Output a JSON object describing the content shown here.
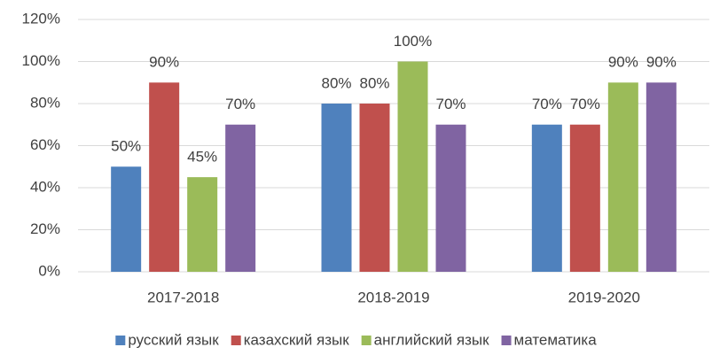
{
  "chart_data": {
    "type": "bar",
    "categories": [
      "2017-2018",
      "2018-2019",
      "2019-2020"
    ],
    "series": [
      {
        "name": "русский язык",
        "color": "#4f81bd",
        "values": [
          50,
          80,
          70
        ],
        "value_labels": [
          "50%",
          "80%",
          "70%"
        ]
      },
      {
        "name": "казахский язык",
        "color": "#c0504d",
        "values": [
          90,
          80,
          70
        ],
        "value_labels": [
          "90%",
          "80%",
          "70%"
        ]
      },
      {
        "name": "английский язык",
        "color": "#9bbb59",
        "values": [
          45,
          100,
          90
        ],
        "value_labels": [
          "45%",
          "100%",
          "90%"
        ]
      },
      {
        "name": "математика",
        "color": "#8064a2",
        "values": [
          70,
          70,
          90
        ],
        "value_labels": [
          "70%",
          "70%",
          "90%"
        ]
      }
    ],
    "ylim": [
      0,
      120
    ],
    "yticks": [
      {
        "value": 0,
        "label": "0%"
      },
      {
        "value": 20,
        "label": "20%"
      },
      {
        "value": 40,
        "label": "40%"
      },
      {
        "value": 60,
        "label": "60%"
      },
      {
        "value": 80,
        "label": "80%"
      },
      {
        "value": 100,
        "label": "100%"
      },
      {
        "value": 120,
        "label": "120%"
      }
    ],
    "grid": true,
    "legend": "bottom"
  }
}
